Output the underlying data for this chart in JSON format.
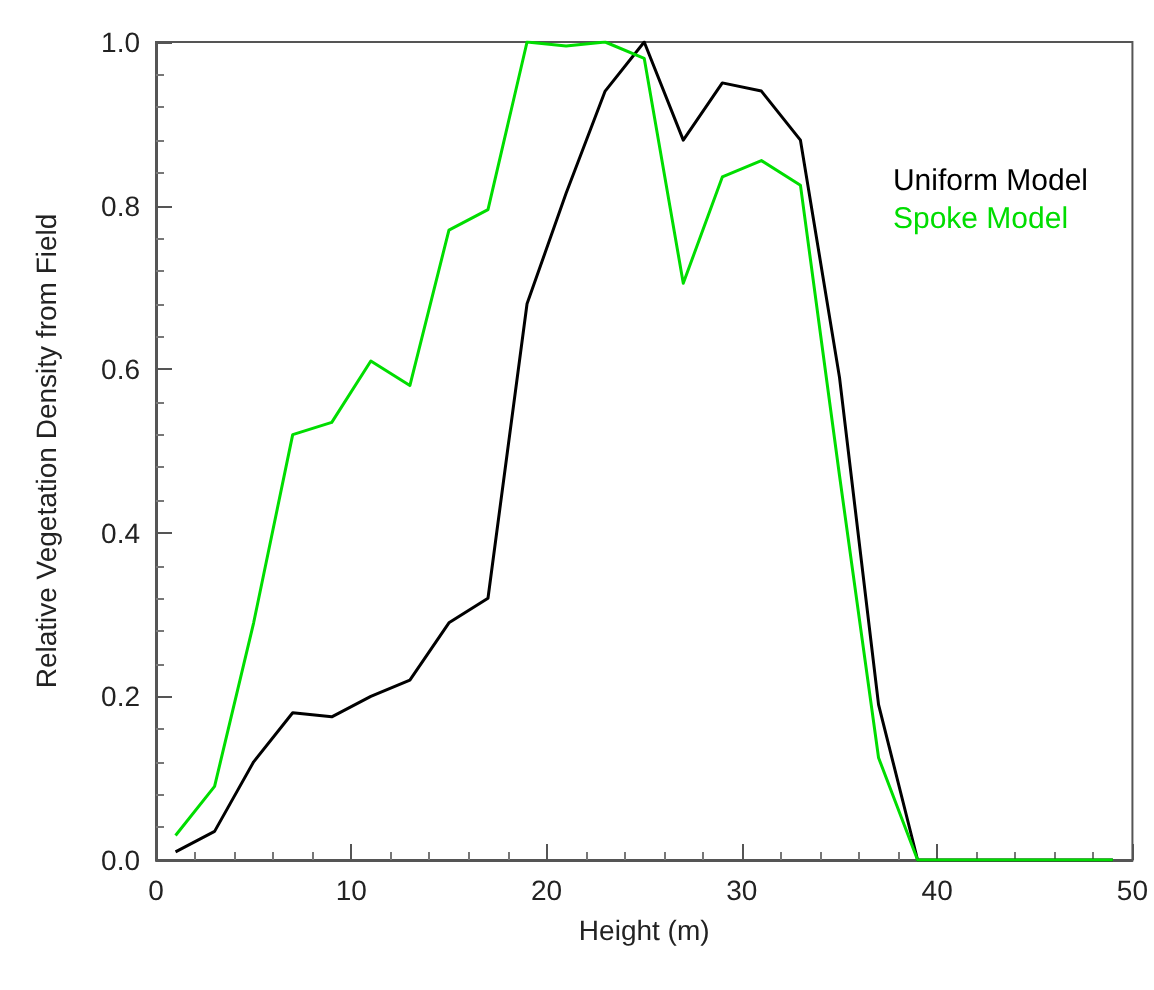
{
  "chart_data": {
    "type": "line",
    "xlabel": "Height (m)",
    "ylabel": "Relative Vegetation Density from Field",
    "x": [
      1,
      3,
      5,
      7,
      9,
      11,
      13,
      15,
      17,
      19,
      21,
      23,
      25,
      27,
      29,
      31,
      33,
      35,
      37,
      39,
      41,
      43,
      45,
      47,
      49
    ],
    "series": [
      {
        "name": "Uniform Model",
        "color": "#000000",
        "values": [
          0.01,
          0.035,
          0.12,
          0.18,
          0.175,
          0.2,
          0.22,
          0.29,
          0.32,
          0.68,
          0.815,
          0.94,
          1.0,
          0.88,
          0.95,
          0.94,
          0.88,
          0.59,
          0.19,
          0,
          0,
          0,
          0,
          0,
          0
        ]
      },
      {
        "name": "Spoke Model",
        "color": "#00dd00",
        "values": [
          0.03,
          0.09,
          0.29,
          0.52,
          0.535,
          0.61,
          0.58,
          0.77,
          0.795,
          1.0,
          0.995,
          1.0,
          0.98,
          0.705,
          0.835,
          0.855,
          0.825,
          0.47,
          0.125,
          0,
          0,
          0,
          0,
          0,
          0
        ]
      }
    ],
    "xlim": [
      0,
      50
    ],
    "xticks": [
      0,
      10,
      20,
      30,
      40,
      50
    ],
    "ylim": [
      0,
      1
    ],
    "yticks": [
      {
        "value": 0,
        "label": "0.0"
      },
      {
        "value": 0.2,
        "label": "0.2"
      },
      {
        "value": 0.4,
        "label": "0.4"
      },
      {
        "value": 0.6,
        "label": "0.6"
      },
      {
        "value": 0.8,
        "label": "0.8"
      },
      {
        "value": 1,
        "label": "1.0"
      }
    ],
    "legend": "top right",
    "grid": false,
    "marker": "none",
    "line_style": "solid"
  }
}
